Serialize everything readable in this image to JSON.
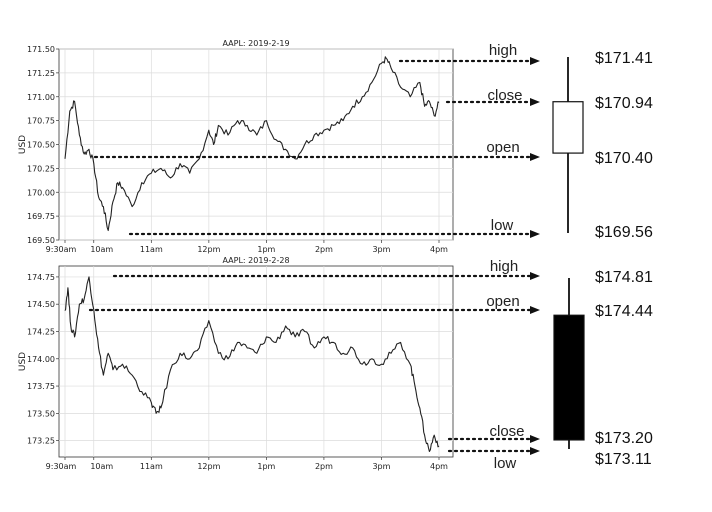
{
  "chart_data": [
    {
      "type": "line",
      "title": "AAPL: 2019-2-19",
      "xlabel": "",
      "ylabel": "USD",
      "x_ticks": [
        "9:30am",
        "10am",
        "11am",
        "12pm",
        "1pm",
        "2pm",
        "3pm",
        "4pm"
      ],
      "ylim": [
        169.5,
        171.5
      ],
      "y_ticks": [
        "169.50",
        "169.75",
        "170.00",
        "170.25",
        "170.50",
        "170.75",
        "171.00",
        "171.25",
        "171.50"
      ],
      "grid": true,
      "x": [
        "9:30am",
        "9:35am",
        "9:40am",
        "9:45am",
        "9:50am",
        "9:55am",
        "10:00am",
        "10:05am",
        "10:10am",
        "10:15am",
        "10:20am",
        "10:25am",
        "10:30am",
        "10:40am",
        "10:50am",
        "11:00am",
        "11:10am",
        "11:20am",
        "11:30am",
        "11:40am",
        "11:50am",
        "12:00pm",
        "12:05pm",
        "12:10pm",
        "12:20pm",
        "12:30pm",
        "12:40pm",
        "12:50pm",
        "1:00pm",
        "1:10pm",
        "1:20pm",
        "1:30pm",
        "1:40pm",
        "1:50pm",
        "2:00pm",
        "2:10pm",
        "2:20pm",
        "2:30pm",
        "2:40pm",
        "2:50pm",
        "3:00pm",
        "3:05pm",
        "3:10pm",
        "3:20pm",
        "3:30pm",
        "3:40pm",
        "3:45pm",
        "3:50pm",
        "3:55pm",
        "4:00pm"
      ],
      "values": [
        170.35,
        170.85,
        170.95,
        170.6,
        170.4,
        170.45,
        170.3,
        169.95,
        169.85,
        169.6,
        169.9,
        170.1,
        170.05,
        169.85,
        170.1,
        170.2,
        170.25,
        170.15,
        170.3,
        170.2,
        170.35,
        170.65,
        170.5,
        170.7,
        170.6,
        170.75,
        170.7,
        170.6,
        170.75,
        170.55,
        170.45,
        170.35,
        170.5,
        170.6,
        170.65,
        170.7,
        170.75,
        170.9,
        171.0,
        171.15,
        171.35,
        171.4,
        171.3,
        171.1,
        171.0,
        171.15,
        170.9,
        170.95,
        170.8,
        170.94
      ],
      "annotations": {
        "high": "high",
        "close": "close",
        "open": "open",
        "low": "low"
      },
      "ohlc": {
        "open": 170.4,
        "high": 171.41,
        "low": 169.56,
        "close": 170.94
      },
      "price_labels": {
        "high": "$171.41",
        "close": "$170.94",
        "open": "$170.40",
        "low": "$169.56"
      }
    },
    {
      "type": "line",
      "title": "AAPL: 2019-2-28",
      "xlabel": "",
      "ylabel": "USD",
      "x_ticks": [
        "9:30am",
        "10am",
        "11am",
        "12pm",
        "1pm",
        "2pm",
        "3pm",
        "4pm"
      ],
      "ylim": [
        173.1,
        174.85
      ],
      "y_ticks": [
        "173.25",
        "173.50",
        "173.75",
        "174.00",
        "174.25",
        "174.50",
        "174.75"
      ],
      "grid": true,
      "x": [
        "9:30am",
        "9:33am",
        "9:36am",
        "9:40am",
        "9:45am",
        "9:50am",
        "9:55am",
        "10:00am",
        "10:05am",
        "10:10am",
        "10:15am",
        "10:20am",
        "10:30am",
        "10:40am",
        "10:50am",
        "11:00am",
        "11:05am",
        "11:10am",
        "11:20am",
        "11:30am",
        "11:40am",
        "11:50am",
        "12:00pm",
        "12:10pm",
        "12:20pm",
        "12:30pm",
        "12:40pm",
        "12:50pm",
        "1:00pm",
        "1:10pm",
        "1:20pm",
        "1:30pm",
        "1:40pm",
        "1:50pm",
        "2:00pm",
        "2:10pm",
        "2:20pm",
        "2:30pm",
        "2:40pm",
        "2:50pm",
        "3:00pm",
        "3:10pm",
        "3:20pm",
        "3:30pm",
        "3:35pm",
        "3:40pm",
        "3:45pm",
        "3:50pm",
        "3:55pm",
        "4:00pm"
      ],
      "values": [
        174.44,
        174.65,
        174.3,
        174.2,
        174.5,
        174.55,
        174.75,
        174.45,
        174.1,
        173.85,
        174.05,
        173.9,
        173.95,
        173.85,
        173.7,
        173.6,
        173.5,
        173.55,
        173.9,
        174.05,
        174.0,
        174.1,
        174.35,
        174.05,
        174.0,
        174.15,
        174.1,
        174.05,
        174.2,
        174.15,
        174.3,
        174.2,
        174.25,
        174.1,
        174.2,
        174.15,
        174.05,
        174.1,
        173.95,
        174.0,
        173.95,
        174.05,
        174.15,
        173.95,
        173.75,
        173.55,
        173.3,
        173.15,
        173.3,
        173.2
      ],
      "annotations": {
        "high": "high",
        "open": "open",
        "close": "close",
        "low": "low"
      },
      "ohlc": {
        "open": 174.44,
        "high": 174.81,
        "low": 173.11,
        "close": 173.2
      },
      "price_labels": {
        "high": "$174.81",
        "open": "$174.44",
        "close": "$173.20",
        "low": "$173.11"
      }
    }
  ]
}
